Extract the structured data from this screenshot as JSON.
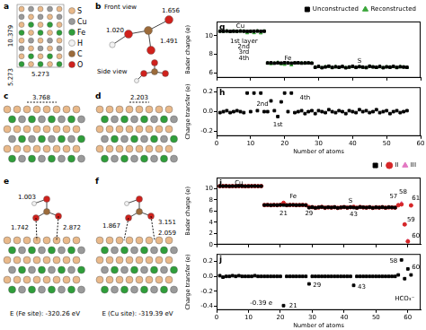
{
  "figure": {
    "legend": [
      {
        "text": "S",
        "color": "#e9b98a"
      },
      {
        "text": "Cu",
        "color": "#9a9a9a"
      },
      {
        "text": "Fe",
        "color": "#2f9e3a"
      },
      {
        "text": "H",
        "color": "#f2f2f2"
      },
      {
        "text": "C",
        "color": "#9c6b3a"
      },
      {
        "text": "O",
        "color": "#d0211c"
      }
    ],
    "panel_a": {
      "label": "a",
      "dimensions": [
        "10.379",
        "5.273",
        "5.273"
      ]
    },
    "panel_b": {
      "label": "b",
      "views": [
        "Front view",
        "Side view"
      ],
      "bond_lengths": [
        "1.656",
        "1.020",
        "1.491"
      ]
    },
    "panel_c": {
      "label": "c",
      "distance": "3.768"
    },
    "panel_d": {
      "label": "d",
      "distance": "2.203"
    },
    "panel_e": {
      "label": "e",
      "distances": [
        "1.003",
        "1.742",
        "2.872"
      ],
      "energy": "E (Fe site): -320.26 eV"
    },
    "panel_f": {
      "label": "f",
      "distances": [
        "1.867",
        "3.151",
        "2.059"
      ],
      "energy": "E (Cu site): -319.39 eV"
    }
  },
  "chart_data": [
    {
      "type": "scatter",
      "panel_label": "g",
      "y_label": "Bader charge (e)",
      "x": [
        1,
        2,
        3,
        4,
        5,
        6,
        7,
        8,
        9,
        10,
        11,
        12,
        13,
        14,
        15,
        16,
        17,
        18,
        19,
        20,
        21,
        22,
        23,
        24,
        25,
        26,
        27,
        28,
        29,
        30,
        31,
        32,
        33,
        34,
        35,
        36,
        37,
        38,
        39,
        40,
        41,
        42,
        43,
        44,
        45,
        46,
        47,
        48,
        49,
        50,
        51,
        52,
        53,
        54,
        55,
        56
      ],
      "series": [
        {
          "name": "Unconstructed",
          "color": "#000000",
          "marker": "square",
          "values": [
            10.47,
            10.46,
            10.48,
            10.45,
            10.47,
            10.46,
            10.48,
            10.47,
            10.45,
            10.46,
            10.47,
            10.48,
            10.46,
            10.47,
            7.08,
            7.1,
            7.06,
            7.09,
            7.07,
            7.11,
            7.08,
            7.06,
            7.09,
            7.1,
            7.07,
            7.08,
            7.09,
            7.06,
            6.62,
            6.71,
            6.58,
            6.66,
            6.74,
            6.6,
            6.68,
            6.63,
            6.7,
            6.57,
            6.65,
            6.72,
            6.61,
            6.69,
            6.64,
            6.59,
            6.73,
            6.66,
            6.62,
            6.7,
            6.58,
            6.67,
            6.63,
            6.71,
            6.6,
            6.68,
            6.65,
            6.62
          ]
        },
        {
          "name": "Reconstructed",
          "color": "#3aa63a",
          "marker": "triangle",
          "values": [
            10.47,
            10.46,
            10.48,
            10.45,
            10.47,
            10.46,
            10.48,
            10.47,
            10.28,
            10.46,
            10.29,
            10.48,
            10.27,
            10.47,
            7.08,
            6.99,
            7.06,
            7.14,
            6.98,
            6.92,
            7.08,
            6.87,
            7.09,
            7.1,
            7.07,
            7.08,
            7.09,
            7.06,
            6.64,
            6.7,
            6.58,
            6.67,
            6.72,
            6.6,
            6.69,
            6.62,
            6.7,
            6.59,
            6.64,
            6.72,
            6.62,
            6.67,
            6.64,
            6.58,
            6.74,
            6.66,
            6.6,
            6.71,
            6.58,
            6.66,
            6.65,
            6.7,
            6.59,
            6.69,
            6.65,
            6.61
          ]
        }
      ],
      "xlim": [
        0,
        60
      ],
      "xticks": [
        0,
        10,
        20,
        30,
        40,
        50,
        60
      ],
      "ylim": [
        5.5,
        11.5
      ],
      "yticks": [
        6,
        8,
        10
      ],
      "grid": false,
      "legend": "top right",
      "tick_labels": "y",
      "annotations": [
        {
          "text": "Cu",
          "x": 7,
          "y": 11.0
        },
        {
          "text": "Fe",
          "x": 21,
          "y": 7.6
        },
        {
          "text": "S",
          "x": 42,
          "y": 7.3
        },
        {
          "text": "1st layer",
          "x": 8,
          "y": 9.4
        },
        {
          "text": "2nd",
          "x": 8,
          "y": 8.8
        },
        {
          "text": "3rd",
          "x": 8,
          "y": 8.2
        },
        {
          "text": "4th",
          "x": 8,
          "y": 7.6
        }
      ]
    },
    {
      "type": "scatter",
      "panel_label": "h",
      "x_label": "Number of atoms",
      "y_label": "Charge transfer (e)",
      "x": [
        1,
        2,
        3,
        4,
        5,
        6,
        7,
        8,
        9,
        10,
        11,
        12,
        13,
        14,
        15,
        16,
        17,
        18,
        19,
        20,
        21,
        22,
        23,
        24,
        25,
        26,
        27,
        28,
        29,
        30,
        31,
        32,
        33,
        34,
        35,
        36,
        37,
        38,
        39,
        40,
        41,
        42,
        43,
        44,
        45,
        46,
        47,
        48,
        49,
        50,
        51,
        52,
        53,
        54,
        55,
        56
      ],
      "values": [
        -0.01,
        0,
        0.01,
        -0.01,
        0,
        0.01,
        0,
        -0.01,
        0.19,
        0,
        0.19,
        0.01,
        0.19,
        0,
        0,
        0.11,
        0.01,
        -0.05,
        0.1,
        0.19,
        0,
        0.19,
        -0.01,
        0,
        0.01,
        -0.02,
        0,
        0.01,
        -0.02,
        0.01,
        0,
        -0.01,
        0.02,
        0,
        -0.01,
        0.01,
        0,
        -0.02,
        0.01,
        0,
        -0.01,
        0.02,
        0,
        0.01,
        -0.01,
        0,
        0.02,
        -0.01,
        0,
        0.01,
        -0.02,
        0,
        0.01,
        -0.01,
        0,
        0.01
      ],
      "color": "#000000",
      "marker": "square",
      "xlim": [
        0,
        60
      ],
      "xticks": [
        0,
        10,
        20,
        30,
        40,
        50,
        60
      ],
      "ylim": [
        -0.25,
        0.25
      ],
      "yticks": [
        -0.2,
        {
          "value": 0,
          "label": "0.0"
        },
        0.2
      ],
      "grid": false,
      "annotations": [
        {
          "text": "1st",
          "x": 18,
          "y": -0.13
        },
        {
          "text": "2nd",
          "x": 13.5,
          "y": 0.08
        },
        {
          "text": "4th",
          "x": 26,
          "y": 0.14
        }
      ]
    },
    {
      "type": "scatter",
      "panel_label": "i",
      "y_label": "Bader charge (e)",
      "x": [
        1,
        2,
        3,
        4,
        5,
        6,
        7,
        8,
        9,
        10,
        11,
        12,
        13,
        14,
        15,
        16,
        17,
        18,
        19,
        20,
        21,
        22,
        23,
        24,
        25,
        26,
        27,
        28,
        29,
        30,
        31,
        32,
        33,
        34,
        35,
        36,
        37,
        38,
        39,
        40,
        41,
        42,
        43,
        44,
        45,
        46,
        47,
        48,
        49,
        50,
        51,
        52,
        53,
        54,
        55,
        56,
        57,
        58,
        59,
        60,
        61
      ],
      "series": [
        {
          "name": "I",
          "color": "#000000",
          "marker": "square",
          "values": [
            10.47,
            10.46,
            10.48,
            10.45,
            10.47,
            10.46,
            10.48,
            10.47,
            10.45,
            10.46,
            10.47,
            10.48,
            10.46,
            10.47,
            7.08,
            7.1,
            7.06,
            7.09,
            7.07,
            7.11,
            7.08,
            7.06,
            7.09,
            7.1,
            7.07,
            7.08,
            7.09,
            7.06,
            6.62,
            6.71,
            6.58,
            6.66,
            6.74,
            6.6,
            6.68,
            6.63,
            6.7,
            6.57,
            6.65,
            6.72,
            6.61,
            6.69,
            6.64,
            6.59,
            6.73,
            6.66,
            6.62,
            6.7,
            6.58,
            6.67,
            6.63,
            6.71,
            6.6,
            6.68,
            6.65,
            6.62,
            null,
            null,
            null,
            null,
            null
          ]
        },
        {
          "name": "II",
          "color": "#d62728",
          "marker": "circle",
          "values": [
            10.46,
            10.47,
            10.48,
            10.45,
            10.46,
            10.46,
            10.47,
            10.47,
            10.45,
            10.46,
            10.47,
            10.47,
            10.46,
            10.47,
            7.08,
            7.1,
            7.06,
            7.09,
            7.07,
            7.11,
            7.47,
            7.06,
            7.09,
            7.1,
            7.07,
            7.08,
            7.09,
            7.06,
            6.72,
            6.71,
            6.58,
            6.66,
            6.74,
            6.6,
            6.68,
            6.63,
            6.7,
            6.57,
            6.65,
            6.72,
            6.61,
            6.69,
            6.76,
            6.59,
            6.73,
            6.66,
            6.62,
            6.7,
            6.58,
            6.67,
            6.63,
            6.71,
            6.6,
            6.68,
            6.65,
            6.62,
            7.05,
            7.2,
            3.62,
            0.58,
            7.02
          ]
        },
        {
          "name": "III",
          "color": "#e377c2",
          "marker": "triangle",
          "values": [
            null,
            null,
            null,
            null,
            null,
            null,
            null,
            null,
            null,
            null,
            null,
            null,
            null,
            null,
            null,
            null,
            null,
            null,
            null,
            null,
            null,
            null,
            null,
            null,
            null,
            null,
            null,
            null,
            null,
            null,
            null,
            null,
            null,
            null,
            null,
            null,
            null,
            null,
            null,
            null,
            null,
            null,
            null,
            null,
            null,
            null,
            null,
            null,
            null,
            null,
            null,
            null,
            null,
            null,
            null,
            null,
            7.07,
            7.42,
            3.59,
            0.68,
            7.04
          ]
        }
      ],
      "xlim": [
        0,
        64
      ],
      "xticks": [
        0,
        10,
        20,
        30,
        40,
        50,
        60
      ],
      "ylim": [
        0,
        12
      ],
      "yticks": [
        0,
        2,
        4,
        6,
        8,
        10
      ],
      "grid": false,
      "legend": "top right",
      "tick_labels": "y",
      "annotations": [
        {
          "text": "Cu",
          "x": 7,
          "y": 11.0
        },
        {
          "text": "Fe",
          "x": 24,
          "y": 8.6
        },
        {
          "text": "S",
          "x": 42,
          "y": 7.8
        },
        {
          "text": "21",
          "x": 21,
          "y": 5.6
        },
        {
          "text": "29",
          "x": 29,
          "y": 5.6
        },
        {
          "text": "43",
          "x": 43,
          "y": 5.4
        },
        {
          "text": "57",
          "x": 55.5,
          "y": 8.6
        },
        {
          "text": "58",
          "x": 58.5,
          "y": 9.4
        },
        {
          "text": "59",
          "x": 61,
          "y": 4.4
        },
        {
          "text": "60",
          "x": 62.5,
          "y": 1.6
        },
        {
          "text": "61",
          "x": 62.5,
          "y": 8.2
        }
      ]
    },
    {
      "type": "scatter",
      "panel_label": "j",
      "x_label": "Number of atoms",
      "y_label": "Charge transfer (e)",
      "x": [
        1,
        2,
        3,
        4,
        5,
        6,
        7,
        8,
        9,
        10,
        11,
        12,
        13,
        14,
        15,
        16,
        17,
        18,
        19,
        20,
        21,
        22,
        23,
        24,
        25,
        26,
        27,
        28,
        29,
        30,
        31,
        32,
        33,
        34,
        35,
        36,
        37,
        38,
        39,
        40,
        41,
        42,
        43,
        44,
        45,
        46,
        47,
        48,
        49,
        50,
        51,
        52,
        53,
        54,
        55,
        56,
        57,
        58,
        59,
        60,
        61
      ],
      "values": [
        0.01,
        -0.01,
        0,
        0,
        0.01,
        0,
        0.01,
        0,
        0,
        0,
        0,
        0.01,
        0,
        0,
        0,
        0,
        0,
        0,
        0,
        0,
        -0.39,
        0,
        0,
        0,
        0,
        0,
        0,
        0,
        -0.1,
        0,
        0,
        0,
        0,
        0,
        0,
        0,
        0,
        0,
        0,
        0,
        0,
        0,
        -0.12,
        0,
        0,
        0,
        0,
        0,
        0,
        0,
        0,
        0,
        0,
        0,
        0,
        0,
        0.02,
        0.22,
        -0.03,
        0.1,
        0.02
      ],
      "color": "#000000",
      "marker": "square",
      "xlim": [
        0,
        64
      ],
      "xticks": [
        0,
        10,
        20,
        30,
        40,
        50,
        60
      ],
      "ylim": [
        -0.45,
        0.3
      ],
      "yticks": [
        -0.4,
        -0.2,
        {
          "value": 0,
          "label": "0.0"
        },
        0.2
      ],
      "grid": false,
      "annotations": [
        {
          "text": "-0.39 e",
          "x": 14,
          "y": -0.36
        },
        {
          "text": "21",
          "x": 24,
          "y": -0.39
        },
        {
          "text": "29",
          "x": 31.5,
          "y": -0.12
        },
        {
          "text": "43",
          "x": 45.5,
          "y": -0.14
        },
        {
          "text": "58",
          "x": 55.5,
          "y": 0.2
        },
        {
          "text": "60",
          "x": 62.5,
          "y": 0.12
        },
        {
          "text": "HCO₃⁻",
          "x": 59,
          "y": -0.3
        }
      ]
    }
  ]
}
